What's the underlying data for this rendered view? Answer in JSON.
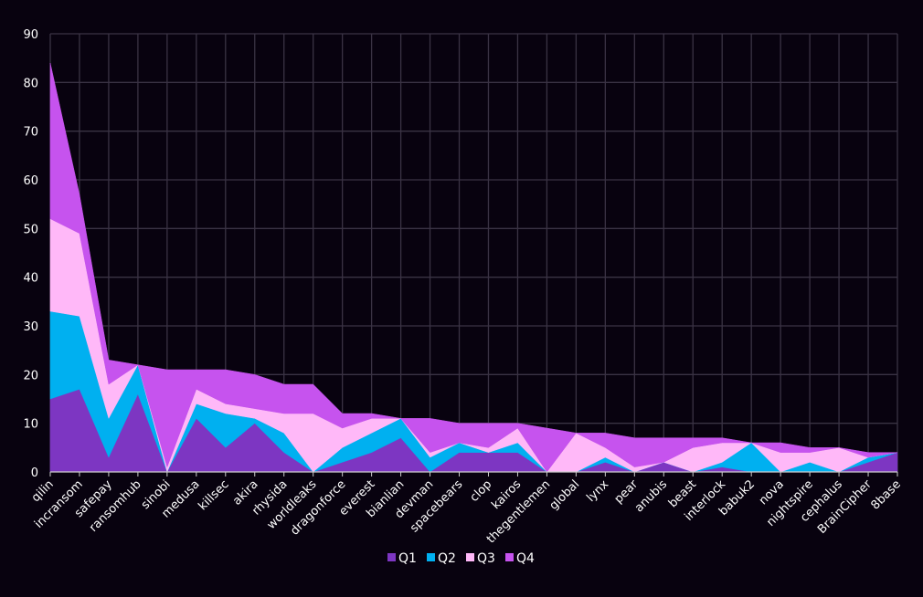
{
  "chart_data": {
    "type": "area",
    "stacked": true,
    "title": "",
    "xlabel": "",
    "ylabel": "",
    "ylim": [
      0,
      90
    ],
    "yticks": [
      0,
      10,
      20,
      30,
      40,
      50,
      60,
      70,
      80,
      90
    ],
    "grid": true,
    "legend_position": "bottom",
    "categories": [
      "qilin",
      "incransom",
      "safepay",
      "ransomhub",
      "sinobi",
      "medusa",
      "killsec",
      "akira",
      "rhysida",
      "worldleaks",
      "dragonforce",
      "everest",
      "bianlian",
      "devman",
      "spacebears",
      "clop",
      "kairos",
      "thegentlemen",
      "global",
      "lynx",
      "pear",
      "anubis",
      "beast",
      "interlock",
      "babuk2",
      "nova",
      "nightspire",
      "cephalus",
      "BrainCipher",
      "8base"
    ],
    "series": [
      {
        "name": "Q1",
        "color": "#7d36c2",
        "values": [
          15,
          17,
          3,
          16,
          0,
          11,
          5,
          10,
          4,
          0,
          2,
          4,
          7,
          0,
          4,
          4,
          4,
          0,
          0,
          2,
          0,
          2,
          0,
          1,
          0,
          0,
          0,
          0,
          2,
          4
        ]
      },
      {
        "name": "Q2",
        "color": "#00b0f0",
        "values": [
          18,
          15,
          8,
          6,
          0,
          3,
          7,
          1,
          4,
          0,
          3,
          4,
          4,
          3,
          2,
          0,
          2,
          0,
          0,
          1,
          0,
          0,
          0,
          1,
          6,
          0,
          2,
          0,
          1,
          0
        ]
      },
      {
        "name": "Q3",
        "color": "#ffb8f8",
        "values": [
          19,
          17,
          7,
          0,
          1,
          3,
          2,
          2,
          4,
          12,
          4,
          3,
          0,
          1,
          0,
          1,
          3,
          0,
          8,
          2,
          1,
          0,
          5,
          4,
          0,
          4,
          2,
          5,
          0,
          0
        ]
      },
      {
        "name": "Q4",
        "color": "#c653ee",
        "values": [
          32,
          8,
          5,
          0,
          20,
          4,
          7,
          7,
          6,
          6,
          3,
          1,
          0,
          7,
          4,
          5,
          1,
          9,
          0,
          3,
          6,
          5,
          2,
          1,
          0,
          2,
          1,
          0,
          1,
          0
        ]
      }
    ]
  }
}
